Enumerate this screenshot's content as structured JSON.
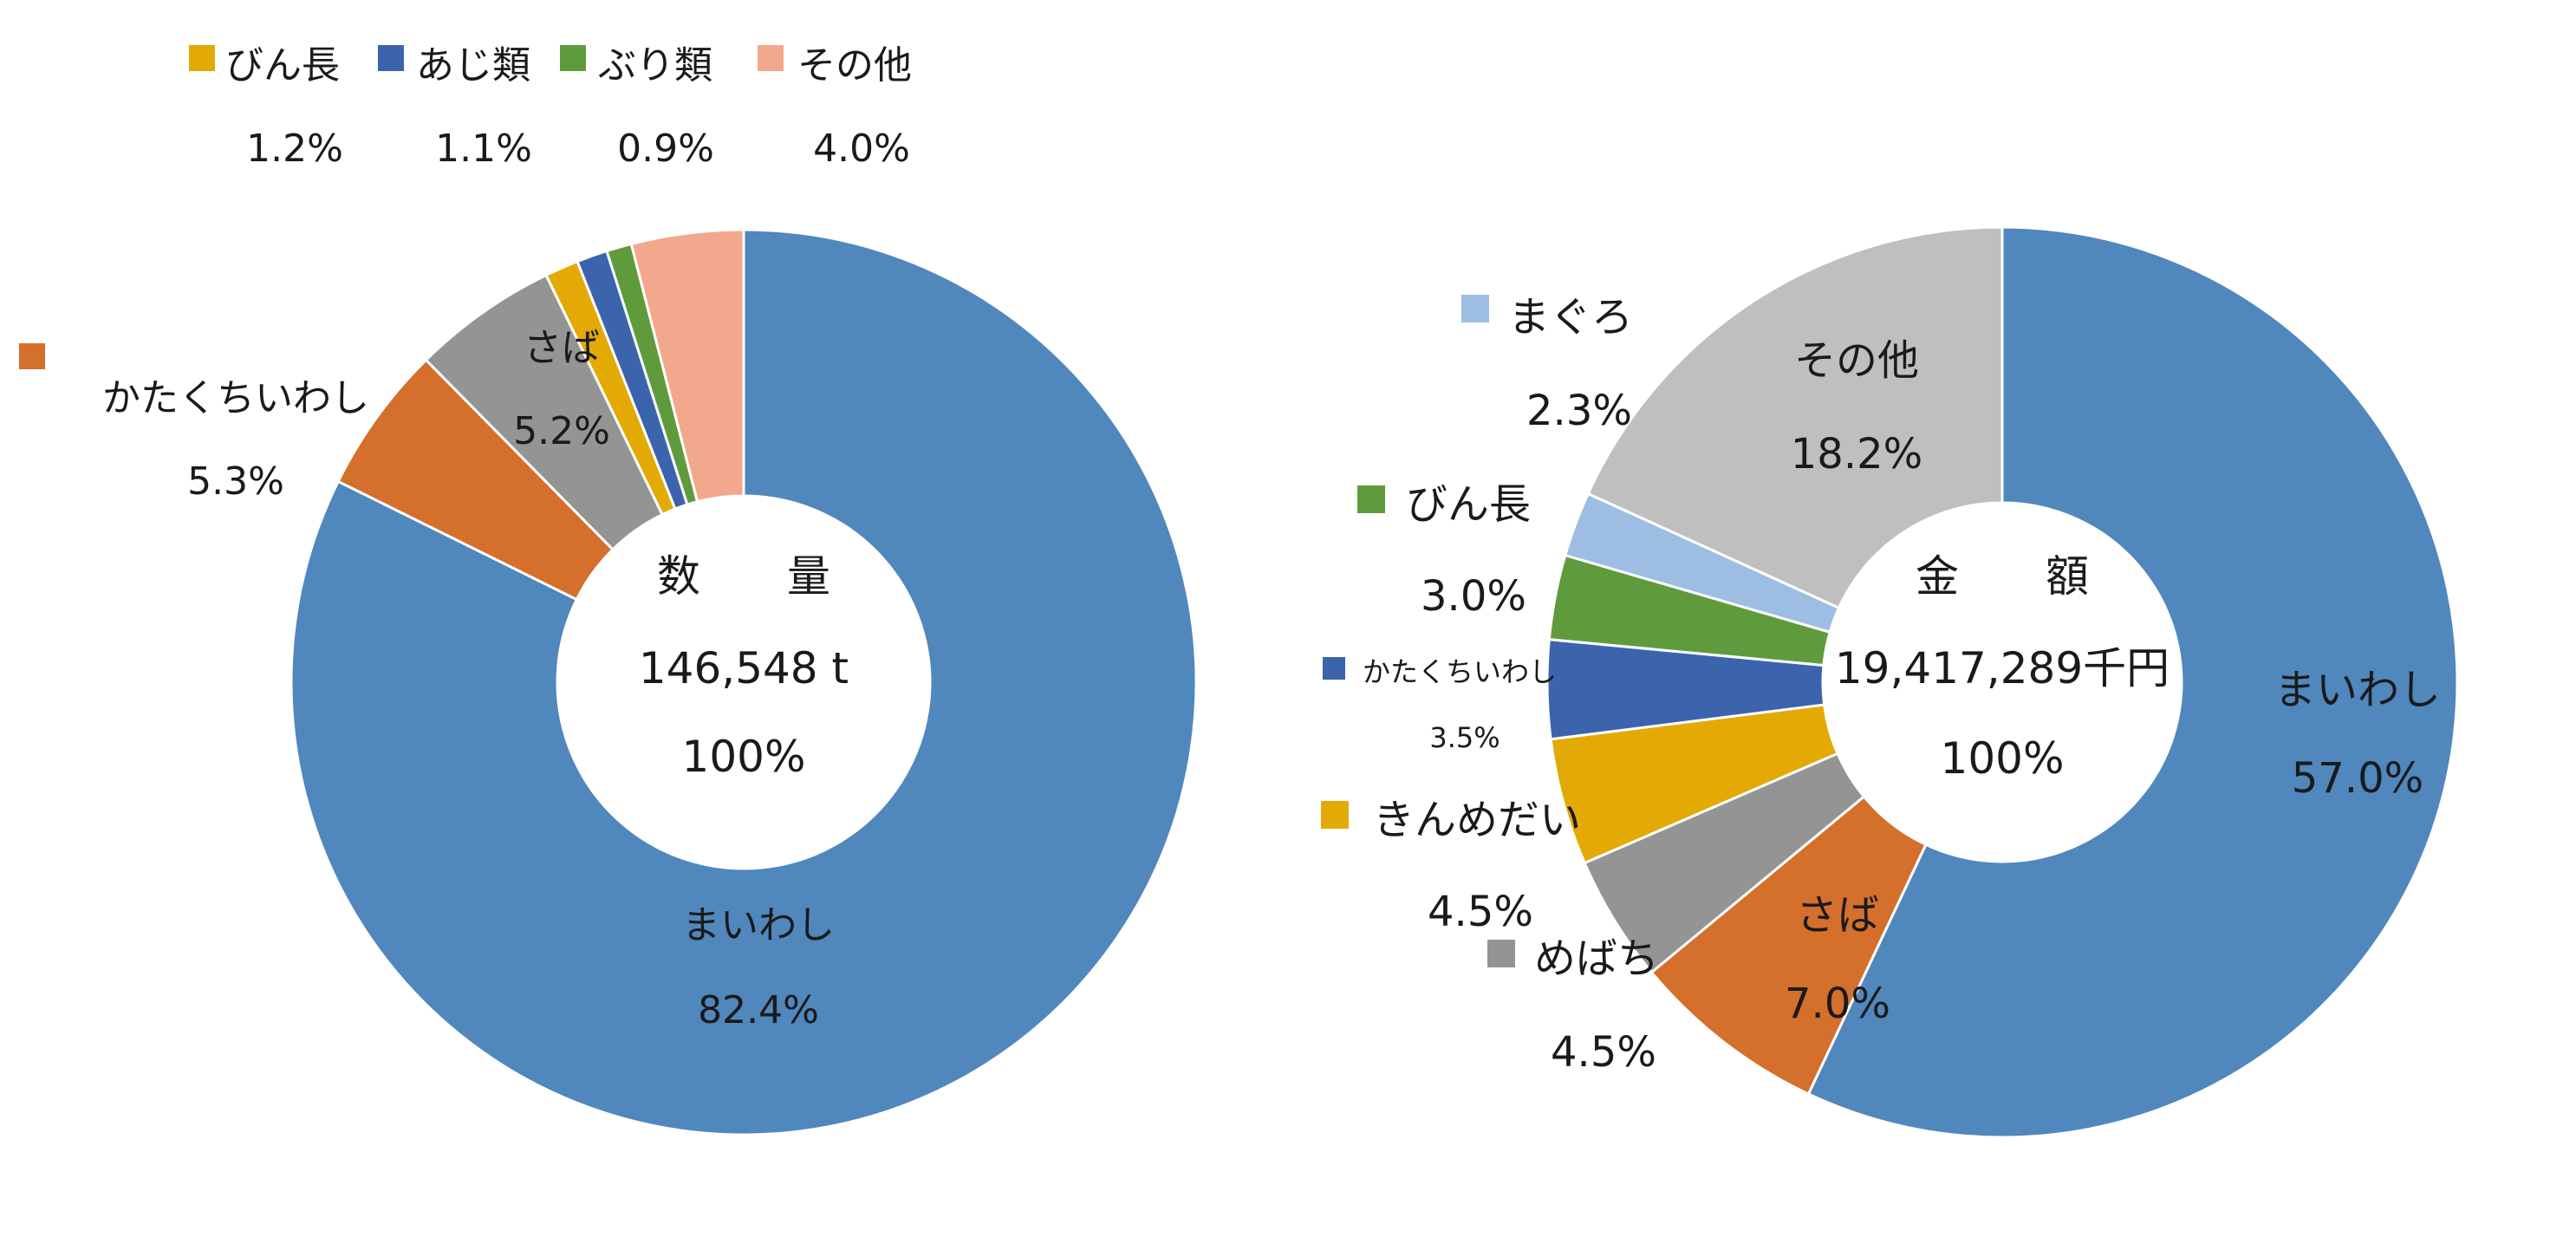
{
  "chart_data": [
    {
      "type": "pie",
      "variant": "donut",
      "center_title": "数　　量",
      "center_total": "146,548 t",
      "center_pct": "100%",
      "slices": [
        {
          "name": "まいわし",
          "value": 82.4,
          "label": "82.4%",
          "color": "#5087bd"
        },
        {
          "name": "かたくちいわし",
          "value": 5.3,
          "label": "5.3%",
          "color": "#d46f2c"
        },
        {
          "name": "さば",
          "value": 5.2,
          "label": "5.2%",
          "color": "#949494"
        },
        {
          "name": "びん長",
          "value": 1.2,
          "label": "1.2%",
          "color": "#e3aa05"
        },
        {
          "name": "あじ類",
          "value": 1.1,
          "label": "1.1%",
          "color": "#3c64ad"
        },
        {
          "name": "ぶり類",
          "value": 0.9,
          "label": "0.9%",
          "color": "#5f9b3d"
        },
        {
          "name": "その他",
          "value": 4.0,
          "label": "4.0%",
          "color": "#f2a88c"
        }
      ]
    },
    {
      "type": "pie",
      "variant": "donut",
      "center_title": "金　　額",
      "center_total": "19,417,289千円",
      "center_pct": "100%",
      "slices": [
        {
          "name": "まいわし",
          "value": 57.0,
          "label": "57.0%",
          "color": "#5087bd"
        },
        {
          "name": "さば",
          "value": 7.0,
          "label": "7.0%",
          "color": "#d46f2c"
        },
        {
          "name": "めばち",
          "value": 4.5,
          "label": "4.5%",
          "color": "#949494"
        },
        {
          "name": "きんめだい",
          "value": 4.5,
          "label": "4.5%",
          "color": "#e3aa05"
        },
        {
          "name": "かたくちいわし",
          "value": 3.5,
          "label": "3.5%",
          "color": "#3c64ad"
        },
        {
          "name": "びん長",
          "value": 3.0,
          "label": "3.0%",
          "color": "#5f9b3d"
        },
        {
          "name": "まぐろ",
          "value": 2.3,
          "label": "2.3%",
          "color": "#9dbde2"
        },
        {
          "name": "その他",
          "value": 18.2,
          "label": "18.2%",
          "color": "#bfbfbf"
        }
      ]
    }
  ]
}
